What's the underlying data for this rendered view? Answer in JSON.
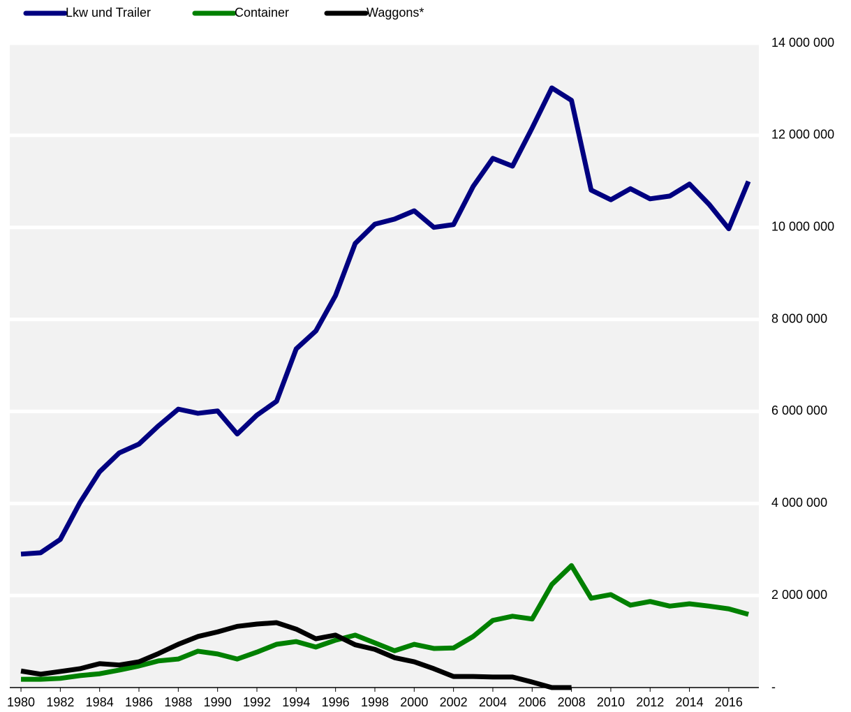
{
  "chart_data": {
    "type": "line",
    "x": [
      1980,
      1981,
      1982,
      1983,
      1984,
      1985,
      1986,
      1987,
      1988,
      1989,
      1990,
      1991,
      1992,
      1993,
      1994,
      1995,
      1996,
      1997,
      1998,
      1999,
      2000,
      2001,
      2002,
      2003,
      2004,
      2005,
      2006,
      2007,
      2008,
      2009,
      2010,
      2011,
      2012,
      2013,
      2014,
      2015,
      2016,
      2017
    ],
    "series": [
      {
        "name": "Lkw und Trailer",
        "color": "#000080",
        "values": [
          2900000,
          2930000,
          3220000,
          4020000,
          4690000,
          5100000,
          5290000,
          5690000,
          6050000,
          5960000,
          6010000,
          5510000,
          5920000,
          6220000,
          7360000,
          7750000,
          8520000,
          9650000,
          10070000,
          10180000,
          10360000,
          10000000,
          10060000,
          10890000,
          11500000,
          11330000,
          12160000,
          13030000,
          12760000,
          10810000,
          10600000,
          10840000,
          10620000,
          10680000,
          10940000,
          10500000,
          9970000,
          11000000
        ]
      },
      {
        "name": "Container",
        "color": "#008000",
        "values": [
          180000,
          180000,
          200000,
          260000,
          300000,
          380000,
          470000,
          580000,
          620000,
          790000,
          730000,
          620000,
          770000,
          940000,
          1000000,
          880000,
          1030000,
          1140000,
          970000,
          800000,
          940000,
          850000,
          860000,
          1110000,
          1460000,
          1550000,
          1490000,
          2240000,
          2650000,
          1940000,
          2020000,
          1790000,
          1870000,
          1770000,
          1820000,
          1770000,
          1710000,
          1590000
        ]
      },
      {
        "name": "Waggons*",
        "color": "#000000",
        "values": [
          360000,
          290000,
          350000,
          410000,
          520000,
          490000,
          560000,
          740000,
          940000,
          1110000,
          1210000,
          1330000,
          1380000,
          1410000,
          1270000,
          1060000,
          1140000,
          930000,
          830000,
          650000,
          560000,
          410000,
          240000,
          240000,
          230000,
          230000,
          120000,
          0,
          0,
          null,
          null,
          null,
          null,
          null,
          null,
          null,
          null,
          null
        ]
      }
    ],
    "xlim": [
      1979.43,
      2017.53
    ],
    "xticks": [
      1980,
      1982,
      1984,
      1986,
      1988,
      1990,
      1992,
      1994,
      1996,
      1998,
      2000,
      2002,
      2004,
      2006,
      2008,
      2010,
      2012,
      2014,
      2016
    ],
    "ylim": [
      0,
      14000000
    ],
    "yticks": [
      {
        "value": 0,
        "label": "-"
      },
      {
        "value": 2000000,
        "label": "2 000 000"
      },
      {
        "value": 4000000,
        "label": "4 000 000"
      },
      {
        "value": 6000000,
        "label": "6 000 000"
      },
      {
        "value": 8000000,
        "label": "8 000 000"
      },
      {
        "value": 10000000,
        "label": "10 000 000"
      },
      {
        "value": 12000000,
        "label": "12 000 000"
      },
      {
        "value": 14000000,
        "label": "14 000 000"
      }
    ],
    "grid": true,
    "legend": "top-left"
  }
}
